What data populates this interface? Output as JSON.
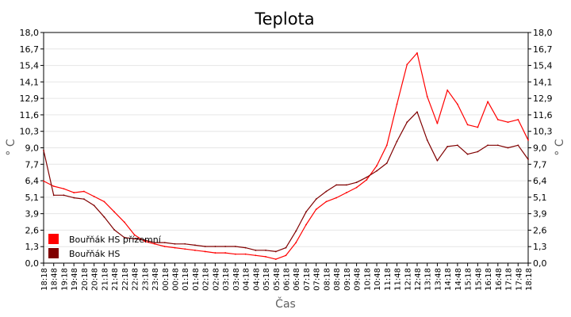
{
  "chart_data": {
    "type": "line",
    "title": "Teplota",
    "xlabel": "Čas",
    "ylabel": "° C",
    "ylabel_right": "° C",
    "ylim": [
      0,
      18
    ],
    "yticks": [
      "0,0",
      "1,3",
      "2,6",
      "3,9",
      "5,1",
      "6,4",
      "7,7",
      "9,0",
      "10,3",
      "11,6",
      "12,9",
      "14,1",
      "15,4",
      "16,7",
      "18,0"
    ],
    "xticks": [
      "18:18",
      "18:48",
      "19:18",
      "19:48",
      "20:18",
      "20:48",
      "21:18",
      "21:48",
      "22:18",
      "22:48",
      "23:18",
      "23:48",
      "00:18",
      "00:48",
      "01:18",
      "01:48",
      "02:18",
      "02:48",
      "03:18",
      "03:48",
      "04:18",
      "04:48",
      "05:18",
      "05:48",
      "06:18",
      "06:48",
      "07:18",
      "07:48",
      "08:18",
      "08:48",
      "09:18",
      "09:48",
      "10:18",
      "10:48",
      "11:18",
      "11:48",
      "12:18",
      "12:48",
      "13:18",
      "13:48",
      "14:18",
      "14:48",
      "15:18",
      "15:48",
      "16:18",
      "16:48",
      "17:18",
      "17:48",
      "18:18"
    ],
    "grid": true,
    "legend_position": "bottom-left",
    "series": [
      {
        "name": "Bouřňák HS přízemní",
        "color": "#ff0000",
        "values": [
          6.4,
          6.0,
          5.8,
          5.5,
          5.6,
          5.2,
          4.8,
          4.0,
          3.2,
          2.2,
          1.7,
          1.5,
          1.3,
          1.2,
          1.1,
          1.0,
          0.9,
          0.8,
          0.8,
          0.7,
          0.7,
          0.6,
          0.5,
          0.3,
          0.6,
          1.6,
          3.0,
          4.2,
          4.8,
          5.1,
          5.5,
          5.9,
          6.5,
          7.6,
          9.2,
          12.4,
          15.5,
          16.4,
          13.0,
          10.9,
          13.5,
          12.4,
          10.8,
          10.6,
          12.6,
          11.2,
          11.0,
          11.2,
          9.6
        ]
      },
      {
        "name": "Bouřňák HS",
        "color": "#800000",
        "values": [
          8.8,
          5.3,
          5.3,
          5.1,
          5.0,
          4.5,
          3.6,
          2.6,
          2.0,
          1.9,
          1.8,
          1.6,
          1.6,
          1.5,
          1.5,
          1.4,
          1.3,
          1.3,
          1.3,
          1.3,
          1.2,
          1.0,
          1.0,
          0.9,
          1.2,
          2.5,
          4.0,
          5.0,
          5.6,
          6.1,
          6.1,
          6.3,
          6.7,
          7.2,
          7.8,
          9.5,
          11.0,
          11.8,
          9.6,
          8.0,
          9.1,
          9.2,
          8.5,
          8.7,
          9.2,
          9.2,
          9.0,
          9.2,
          8.1
        ]
      }
    ]
  }
}
